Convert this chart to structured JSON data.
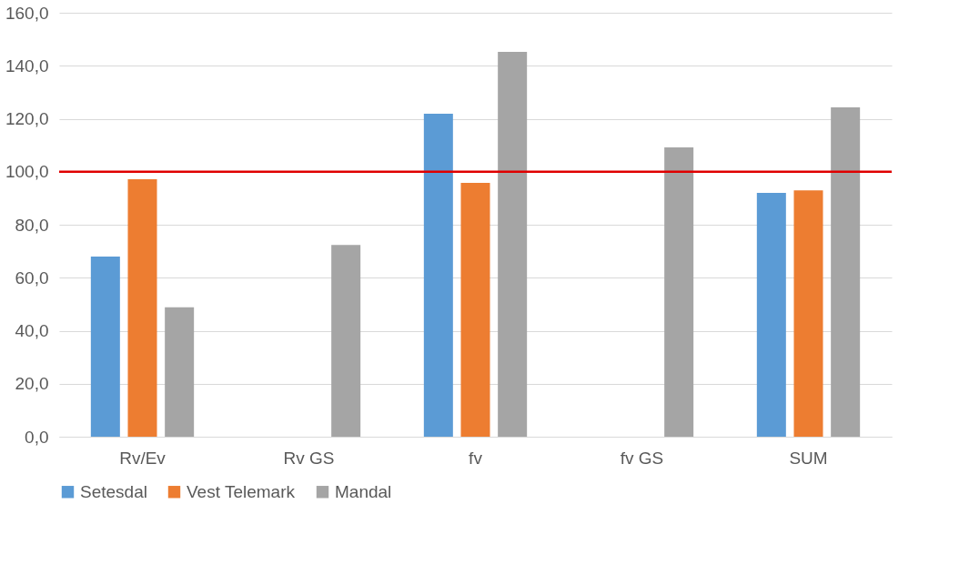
{
  "chart_data": {
    "type": "bar",
    "categories": [
      "Rv/Ev",
      "Rv GS",
      "fv",
      "fv GS",
      "SUM"
    ],
    "series": [
      {
        "name": "Setesdal",
        "color": "#5b9bd5",
        "values": [
          68.0,
          null,
          121.9,
          null,
          92.0
        ]
      },
      {
        "name": "Vest Telemark",
        "color": "#ed7d31",
        "values": [
          97.2,
          null,
          95.8,
          null,
          93.0
        ]
      },
      {
        "name": "Mandal",
        "color": "#a5a5a5",
        "values": [
          48.8,
          72.4,
          145.2,
          109.2,
          124.3
        ]
      }
    ],
    "ylim": [
      0,
      160
    ],
    "yticks": [
      {
        "value": 0,
        "label": "0,0"
      },
      {
        "value": 20,
        "label": "20,0"
      },
      {
        "value": 40,
        "label": "40,0"
      },
      {
        "value": 60,
        "label": "60,0"
      },
      {
        "value": 80,
        "label": "80,0"
      },
      {
        "value": 100,
        "label": "100,0"
      },
      {
        "value": 120,
        "label": "120,0"
      },
      {
        "value": 140,
        "label": "140,0"
      },
      {
        "value": 160,
        "label": "160,0"
      }
    ],
    "ref_lines": [
      {
        "axis": "y",
        "value": 100,
        "color": "#e00000"
      }
    ],
    "grid": "y",
    "legend": "bottom"
  }
}
